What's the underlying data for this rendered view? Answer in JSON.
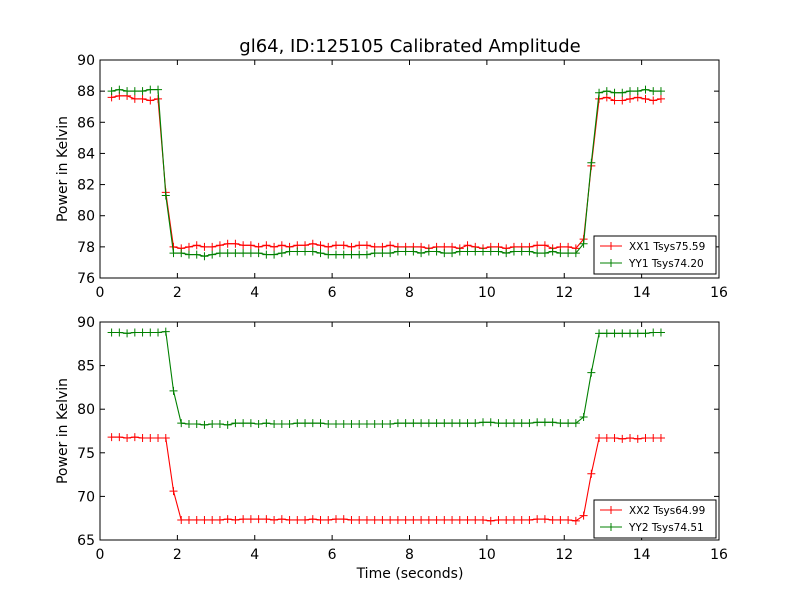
{
  "chart_data": [
    {
      "type": "line",
      "title": "gl64, ID:125105 Calibrated Amplitude",
      "xlabel": "",
      "ylabel": "Power in Kelvin",
      "xlim": [
        0,
        16
      ],
      "ylim": [
        76,
        90
      ],
      "xticks": [
        "0",
        "2",
        "4",
        "6",
        "8",
        "10",
        "12",
        "14",
        "16"
      ],
      "yticks": [
        "76",
        "78",
        "80",
        "82",
        "84",
        "86",
        "88",
        "90"
      ],
      "grid": false,
      "legend_position": "lower right",
      "x": [
        0.3,
        0.5,
        0.7,
        0.9,
        1.1,
        1.3,
        1.5,
        1.7,
        1.9,
        2.1,
        2.3,
        2.5,
        2.7,
        2.9,
        3.1,
        3.3,
        3.5,
        3.7,
        3.9,
        4.1,
        4.3,
        4.5,
        4.7,
        4.9,
        5.1,
        5.3,
        5.5,
        5.7,
        5.9,
        6.1,
        6.3,
        6.5,
        6.7,
        6.9,
        7.1,
        7.3,
        7.5,
        7.7,
        7.9,
        8.1,
        8.3,
        8.5,
        8.7,
        8.9,
        9.1,
        9.3,
        9.5,
        9.7,
        9.9,
        10.1,
        10.3,
        10.5,
        10.7,
        10.9,
        11.1,
        11.3,
        11.5,
        11.7,
        11.9,
        12.1,
        12.3,
        12.5,
        12.7,
        12.9,
        13.1,
        13.3,
        13.5,
        13.7,
        13.9,
        14.1,
        14.3,
        14.5
      ],
      "series": [
        {
          "name": "XX1 Tsys75.59",
          "color": "#ff0000",
          "values": [
            87.6,
            87.7,
            87.7,
            87.5,
            87.5,
            87.4,
            87.5,
            81.5,
            78.0,
            77.9,
            78.0,
            78.1,
            78.0,
            78.0,
            78.1,
            78.2,
            78.2,
            78.1,
            78.1,
            78.0,
            78.1,
            78.0,
            78.1,
            78.0,
            78.1,
            78.1,
            78.2,
            78.1,
            78.0,
            78.1,
            78.1,
            78.0,
            78.1,
            78.1,
            78.0,
            78.0,
            78.1,
            78.0,
            78.0,
            78.0,
            78.0,
            77.9,
            78.0,
            78.0,
            78.0,
            77.9,
            78.1,
            78.0,
            77.9,
            78.0,
            78.0,
            77.9,
            78.0,
            78.0,
            78.0,
            78.1,
            78.1,
            77.9,
            78.0,
            78.0,
            77.9,
            78.5,
            83.2,
            87.5,
            87.6,
            87.4,
            87.4,
            87.5,
            87.6,
            87.5,
            87.4,
            87.5
          ]
        },
        {
          "name": "YY1 Tsys74.20",
          "color": "#008000",
          "values": [
            88.0,
            88.1,
            88.0,
            88.0,
            88.0,
            88.1,
            88.1,
            81.3,
            77.6,
            77.6,
            77.5,
            77.5,
            77.4,
            77.5,
            77.6,
            77.6,
            77.6,
            77.6,
            77.6,
            77.6,
            77.5,
            77.5,
            77.6,
            77.7,
            77.7,
            77.7,
            77.7,
            77.6,
            77.5,
            77.5,
            77.5,
            77.5,
            77.5,
            77.5,
            77.6,
            77.6,
            77.6,
            77.7,
            77.7,
            77.7,
            77.6,
            77.7,
            77.7,
            77.6,
            77.6,
            77.7,
            77.7,
            77.7,
            77.7,
            77.7,
            77.7,
            77.6,
            77.7,
            77.7,
            77.7,
            77.6,
            77.6,
            77.7,
            77.6,
            77.6,
            77.6,
            78.2,
            83.4,
            87.9,
            88.0,
            87.9,
            87.9,
            88.0,
            88.0,
            88.1,
            88.0,
            88.0
          ]
        }
      ]
    },
    {
      "type": "line",
      "title": "",
      "xlabel": "Time (seconds)",
      "ylabel": "Power in Kelvin",
      "xlim": [
        0,
        16
      ],
      "ylim": [
        65,
        90
      ],
      "xticks": [
        "0",
        "2",
        "4",
        "6",
        "8",
        "10",
        "12",
        "14",
        "16"
      ],
      "yticks": [
        "65",
        "70",
        "75",
        "80",
        "85",
        "90"
      ],
      "grid": false,
      "legend_position": "lower right",
      "x": [
        0.3,
        0.5,
        0.7,
        0.9,
        1.1,
        1.3,
        1.5,
        1.7,
        1.9,
        2.1,
        2.3,
        2.5,
        2.7,
        2.9,
        3.1,
        3.3,
        3.5,
        3.7,
        3.9,
        4.1,
        4.3,
        4.5,
        4.7,
        4.9,
        5.1,
        5.3,
        5.5,
        5.7,
        5.9,
        6.1,
        6.3,
        6.5,
        6.7,
        6.9,
        7.1,
        7.3,
        7.5,
        7.7,
        7.9,
        8.1,
        8.3,
        8.5,
        8.7,
        8.9,
        9.1,
        9.3,
        9.5,
        9.7,
        9.9,
        10.1,
        10.3,
        10.5,
        10.7,
        10.9,
        11.1,
        11.3,
        11.5,
        11.7,
        11.9,
        12.1,
        12.3,
        12.5,
        12.7,
        12.9,
        13.1,
        13.3,
        13.5,
        13.7,
        13.9,
        14.1,
        14.3,
        14.5
      ],
      "series": [
        {
          "name": "XX2 Tsys64.99",
          "color": "#ff0000",
          "values": [
            76.8,
            76.8,
            76.7,
            76.8,
            76.7,
            76.7,
            76.7,
            76.7,
            70.6,
            67.3,
            67.3,
            67.3,
            67.3,
            67.3,
            67.3,
            67.4,
            67.3,
            67.4,
            67.4,
            67.4,
            67.4,
            67.3,
            67.4,
            67.3,
            67.3,
            67.3,
            67.4,
            67.3,
            67.3,
            67.4,
            67.4,
            67.3,
            67.3,
            67.3,
            67.3,
            67.3,
            67.3,
            67.3,
            67.3,
            67.3,
            67.3,
            67.3,
            67.3,
            67.3,
            67.3,
            67.3,
            67.3,
            67.3,
            67.3,
            67.2,
            67.3,
            67.3,
            67.3,
            67.3,
            67.3,
            67.4,
            67.4,
            67.3,
            67.3,
            67.3,
            67.2,
            67.8,
            72.6,
            76.7,
            76.7,
            76.7,
            76.6,
            76.7,
            76.6,
            76.7,
            76.7,
            76.7
          ]
        },
        {
          "name": "YY2 Tsys74.51",
          "color": "#008000",
          "values": [
            88.8,
            88.8,
            88.7,
            88.8,
            88.8,
            88.8,
            88.8,
            88.9,
            82.1,
            78.4,
            78.3,
            78.3,
            78.2,
            78.3,
            78.3,
            78.2,
            78.4,
            78.4,
            78.4,
            78.3,
            78.4,
            78.3,
            78.3,
            78.3,
            78.4,
            78.4,
            78.4,
            78.4,
            78.3,
            78.3,
            78.3,
            78.3,
            78.3,
            78.3,
            78.3,
            78.3,
            78.3,
            78.4,
            78.4,
            78.4,
            78.4,
            78.4,
            78.4,
            78.4,
            78.4,
            78.4,
            78.4,
            78.4,
            78.5,
            78.5,
            78.4,
            78.4,
            78.4,
            78.4,
            78.4,
            78.5,
            78.5,
            78.5,
            78.4,
            78.4,
            78.4,
            79.1,
            84.2,
            88.7,
            88.7,
            88.7,
            88.7,
            88.7,
            88.7,
            88.7,
            88.8,
            88.8
          ]
        }
      ]
    }
  ]
}
